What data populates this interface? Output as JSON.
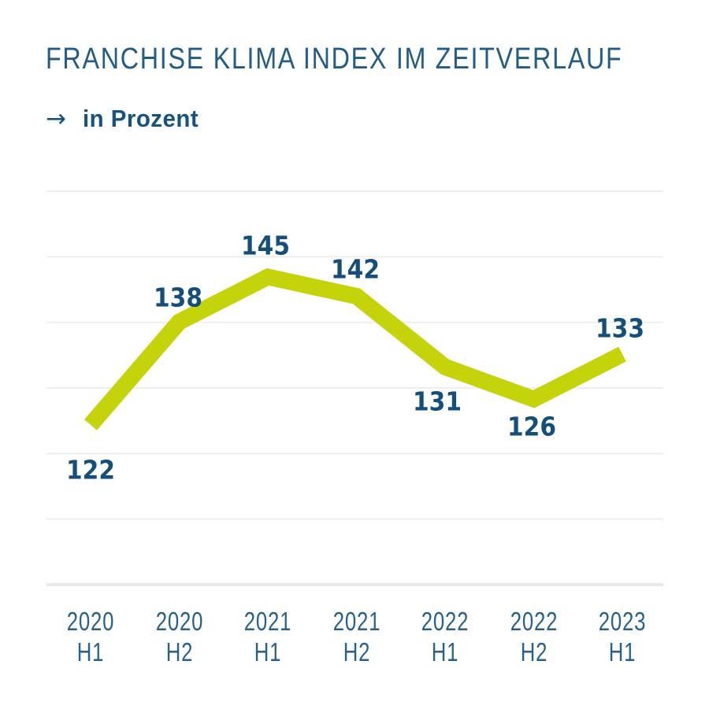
{
  "icons": {
    "arrow_right": "→"
  },
  "colors": {
    "background": "#ffffff",
    "title": "#235c84",
    "subtitle": "#155380",
    "value_label": "#134f7a",
    "axis_label": "#27618b",
    "line": "#c5d30b",
    "gridline": "#eceeef",
    "axis_line": "#e7e9ea"
  },
  "chart_data": {
    "type": "line",
    "title": "FRANCHISE KLIMA INDEX IM ZEITVERLAUF",
    "subtitle": "in Prozent",
    "unit": "Prozent",
    "categories": [
      {
        "year": "2020",
        "half": "H1"
      },
      {
        "year": "2020",
        "half": "H2"
      },
      {
        "year": "2021",
        "half": "H1"
      },
      {
        "year": "2021",
        "half": "H2"
      },
      {
        "year": "2022",
        "half": "H1"
      },
      {
        "year": "2022",
        "half": "H2"
      },
      {
        "year": "2023",
        "half": "H1"
      }
    ],
    "values": [
      122,
      138,
      145,
      142,
      131,
      126,
      133
    ],
    "series": [
      {
        "name": "Franchise Klima Index",
        "values": [
          122,
          138,
          145,
          142,
          131,
          126,
          133
        ]
      }
    ],
    "data_labels": true,
    "grid": true,
    "legend": false,
    "y_axis_labels": false,
    "ylim": [
      97,
      158
    ],
    "gridline_step": 10
  }
}
